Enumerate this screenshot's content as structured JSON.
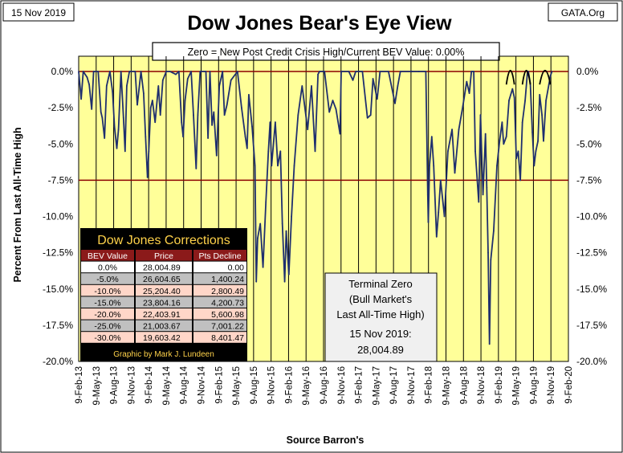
{
  "chart_data": {
    "type": "line",
    "title": "Dow Jones Bear's Eye View",
    "date_label": "15 Nov 2019",
    "source_label": "GATA.Org",
    "subtitle": "Zero = New Post Credit Crisis High/Current BEV Value:  0.00%",
    "xlabel": "Source Barron's",
    "ylabel": "Percent From Last All-Time High",
    "ylim": [
      -20,
      0
    ],
    "y_ticks": [
      0,
      -2.5,
      -5,
      -7.5,
      -10,
      -12.5,
      -15,
      -17.5,
      -20
    ],
    "y_tick_labels": [
      "0.0%",
      "-2.5%",
      "-5.0%",
      "-7.5%",
      "-10.0%",
      "-12.5%",
      "-15.0%",
      "-17.5%",
      "-20.0%"
    ],
    "x_range": [
      "2013-02-09",
      "2020-02-09"
    ],
    "x_tick_labels": [
      "9-Feb-13",
      "9-May-13",
      "9-Aug-13",
      "9-Nov-13",
      "9-Feb-14",
      "9-May-14",
      "9-Aug-14",
      "9-Nov-14",
      "9-Feb-15",
      "9-May-15",
      "9-Aug-15",
      "9-Nov-15",
      "9-Feb-16",
      "9-May-16",
      "9-Aug-16",
      "9-Nov-16",
      "9-Feb-17",
      "9-May-17",
      "9-Aug-17",
      "9-Nov-17",
      "9-Feb-18",
      "9-May-18",
      "9-Aug-18",
      "9-Nov-18",
      "9-Feb-19",
      "9-May-19",
      "9-Aug-19",
      "9-Nov-19",
      "9-Feb-20"
    ],
    "reference_lines": [
      0,
      -7.5
    ],
    "colors": {
      "plot_bg": "#ffff99",
      "line": "#1f2f6e",
      "reference": "#8b0000",
      "table_bg": "#000000",
      "table_title": "#ffd24a",
      "table_header": "#8b1a1a",
      "row_light": "#ffffff",
      "row_gray": "#c0c0c0",
      "row_pink": "#ffd6c8"
    },
    "series": [
      {
        "values": [
          [
            "2013-02-09",
            0.0
          ],
          [
            "2013-02-22",
            -1.9
          ],
          [
            "2013-03-05",
            0.0
          ],
          [
            "2013-03-25",
            -0.4
          ],
          [
            "2013-04-05",
            -0.9
          ],
          [
            "2013-04-18",
            -2.6
          ],
          [
            "2013-04-28",
            0.0
          ],
          [
            "2013-05-22",
            0.0
          ],
          [
            "2013-06-05",
            -2.8
          ],
          [
            "2013-06-12",
            -3.2
          ],
          [
            "2013-06-24",
            -4.6
          ],
          [
            "2013-07-05",
            -1.0
          ],
          [
            "2013-07-22",
            0.0
          ],
          [
            "2013-08-05",
            -1.4
          ],
          [
            "2013-08-15",
            -3.8
          ],
          [
            "2013-08-27",
            -5.3
          ],
          [
            "2013-09-05",
            -4.0
          ],
          [
            "2013-09-18",
            0.0
          ],
          [
            "2013-10-01",
            -3.2
          ],
          [
            "2013-10-09",
            -5.5
          ],
          [
            "2013-10-18",
            -1.0
          ],
          [
            "2013-11-01",
            0.0
          ],
          [
            "2013-12-01",
            0.0
          ],
          [
            "2013-12-12",
            -2.3
          ],
          [
            "2013-12-31",
            0.0
          ],
          [
            "2014-01-14",
            -1.5
          ],
          [
            "2014-01-24",
            -4.5
          ],
          [
            "2014-02-03",
            -7.3
          ],
          [
            "2014-02-10",
            -5.5
          ],
          [
            "2014-02-20",
            -2.5
          ],
          [
            "2014-03-01",
            -2.0
          ],
          [
            "2014-03-15",
            -3.5
          ],
          [
            "2014-04-01",
            -1.0
          ],
          [
            "2014-04-11",
            -3.0
          ],
          [
            "2014-04-24",
            -0.6
          ],
          [
            "2014-05-12",
            0.0
          ],
          [
            "2014-06-01",
            0.0
          ],
          [
            "2014-07-01",
            -0.2
          ],
          [
            "2014-07-17",
            0.0
          ],
          [
            "2014-07-31",
            -3.5
          ],
          [
            "2014-08-08",
            -4.5
          ],
          [
            "2014-08-18",
            -2.0
          ],
          [
            "2014-09-01",
            -0.5
          ],
          [
            "2014-09-19",
            0.0
          ],
          [
            "2014-10-01",
            -3.0
          ],
          [
            "2014-10-15",
            -6.7
          ],
          [
            "2014-10-24",
            -3.0
          ],
          [
            "2014-11-05",
            0.0
          ],
          [
            "2014-12-05",
            0.0
          ],
          [
            "2014-12-16",
            -4.6
          ],
          [
            "2014-12-26",
            0.0
          ],
          [
            "2015-01-06",
            -3.7
          ],
          [
            "2015-01-15",
            -2.8
          ],
          [
            "2015-01-30",
            -5.8
          ],
          [
            "2015-02-13",
            -1.0
          ],
          [
            "2015-03-02",
            0.0
          ],
          [
            "2015-03-12",
            -3.0
          ],
          [
            "2015-03-25",
            -2.3
          ],
          [
            "2015-04-15",
            -0.6
          ],
          [
            "2015-05-19",
            0.0
          ],
          [
            "2015-06-09",
            -2.5
          ],
          [
            "2015-06-29",
            -4.5
          ],
          [
            "2015-07-08",
            -5.3
          ],
          [
            "2015-07-17",
            -1.6
          ],
          [
            "2015-08-03",
            -3.8
          ],
          [
            "2015-08-18",
            -6.5
          ],
          [
            "2015-08-25",
            -14.5
          ],
          [
            "2015-09-01",
            -11.5
          ],
          [
            "2015-09-15",
            -10.5
          ],
          [
            "2015-09-29",
            -13.5
          ],
          [
            "2015-10-14",
            -9.0
          ],
          [
            "2015-10-27",
            -5.5
          ],
          [
            "2015-11-05",
            -3.5
          ],
          [
            "2015-11-13",
            -6.5
          ],
          [
            "2015-12-02",
            -3.5
          ],
          [
            "2015-12-15",
            -6.5
          ],
          [
            "2015-12-29",
            -5.5
          ],
          [
            "2016-01-08",
            -10.5
          ],
          [
            "2016-01-20",
            -14.5
          ],
          [
            "2016-01-28",
            -11.0
          ],
          [
            "2016-02-11",
            -14.0
          ],
          [
            "2016-02-25",
            -10.0
          ],
          [
            "2016-03-10",
            -6.5
          ],
          [
            "2016-03-30",
            -3.0
          ],
          [
            "2016-04-20",
            -1.0
          ],
          [
            "2016-05-19",
            -4.0
          ],
          [
            "2016-06-08",
            -1.0
          ],
          [
            "2016-06-27",
            -5.5
          ],
          [
            "2016-07-12",
            -0.2
          ],
          [
            "2016-07-20",
            0.0
          ],
          [
            "2016-08-15",
            0.0
          ],
          [
            "2016-09-09",
            -2.8
          ],
          [
            "2016-09-27",
            -2.0
          ],
          [
            "2016-10-14",
            -2.6
          ],
          [
            "2016-11-04",
            -4.3
          ],
          [
            "2016-11-10",
            0.0
          ],
          [
            "2016-12-20",
            0.0
          ],
          [
            "2017-01-10",
            -0.6
          ],
          [
            "2017-01-25",
            0.0
          ],
          [
            "2017-03-01",
            0.0
          ],
          [
            "2017-03-27",
            -3.2
          ],
          [
            "2017-04-13",
            -3.0
          ],
          [
            "2017-04-25",
            -0.5
          ],
          [
            "2017-05-17",
            -1.9
          ],
          [
            "2017-06-01",
            0.0
          ],
          [
            "2017-07-15",
            0.0
          ],
          [
            "2017-08-18",
            -2.2
          ],
          [
            "2017-09-01",
            -1.0
          ],
          [
            "2017-09-15",
            0.0
          ],
          [
            "2017-11-15",
            0.0
          ],
          [
            "2017-12-20",
            0.0
          ],
          [
            "2018-01-26",
            0.0
          ],
          [
            "2018-02-05",
            -8.5
          ],
          [
            "2018-02-08",
            -10.4
          ],
          [
            "2018-02-14",
            -6.5
          ],
          [
            "2018-02-26",
            -4.5
          ],
          [
            "2018-03-08",
            -6.5
          ],
          [
            "2018-03-23",
            -11.4
          ],
          [
            "2018-04-02",
            -9.7
          ],
          [
            "2018-04-13",
            -7.5
          ],
          [
            "2018-05-03",
            -10.0
          ],
          [
            "2018-05-21",
            -5.5
          ],
          [
            "2018-06-12",
            -4.0
          ],
          [
            "2018-06-26",
            -7.0
          ],
          [
            "2018-07-17",
            -4.0
          ],
          [
            "2018-08-07",
            -2.4
          ],
          [
            "2018-08-27",
            -0.7
          ],
          [
            "2018-09-10",
            -1.5
          ],
          [
            "2018-09-21",
            0.0
          ],
          [
            "2018-10-03",
            0.0
          ],
          [
            "2018-10-11",
            -5.5
          ],
          [
            "2018-10-29",
            -9.0
          ],
          [
            "2018-11-07",
            -3.0
          ],
          [
            "2018-11-20",
            -8.5
          ],
          [
            "2018-12-03",
            -4.3
          ],
          [
            "2018-12-10",
            -8.0
          ],
          [
            "2018-12-17",
            -12.5
          ],
          [
            "2018-12-24",
            -18.8
          ],
          [
            "2018-12-31",
            -13.0
          ],
          [
            "2019-01-15",
            -11.0
          ],
          [
            "2019-02-01",
            -6.5
          ],
          [
            "2019-02-15",
            -4.8
          ],
          [
            "2019-02-28",
            -3.5
          ],
          [
            "2019-03-08",
            -5.0
          ],
          [
            "2019-03-22",
            -4.5
          ],
          [
            "2019-04-05",
            -2.0
          ],
          [
            "2019-04-23",
            -1.2
          ],
          [
            "2019-05-03",
            -1.8
          ],
          [
            "2019-05-13",
            -6.0
          ],
          [
            "2019-05-23",
            -5.5
          ],
          [
            "2019-06-03",
            -7.5
          ],
          [
            "2019-06-14",
            -3.5
          ],
          [
            "2019-06-28",
            -2.0
          ],
          [
            "2019-07-10",
            -0.1
          ],
          [
            "2019-07-15",
            0.0
          ],
          [
            "2019-07-25",
            -0.8
          ],
          [
            "2019-08-05",
            -4.2
          ],
          [
            "2019-08-14",
            -6.5
          ],
          [
            "2019-08-23",
            -5.5
          ],
          [
            "2019-09-03",
            -4.8
          ],
          [
            "2019-09-12",
            -1.6
          ],
          [
            "2019-09-24",
            -3.0
          ],
          [
            "2019-10-02",
            -4.8
          ],
          [
            "2019-10-15",
            -2.0
          ],
          [
            "2019-10-30",
            -0.9
          ],
          [
            "2019-11-07",
            -0.3
          ],
          [
            "2019-11-15",
            0.0
          ]
        ]
      }
    ],
    "annotations": [
      {
        "start": "2019-03-22",
        "end": "2019-05-03",
        "type": "arc"
      },
      {
        "start": "2019-06-14",
        "end": "2019-07-25",
        "type": "arc"
      },
      {
        "start": "2019-09-12",
        "end": "2019-11-07",
        "type": "arc"
      }
    ]
  },
  "corrections_table": {
    "title": "Dow Jones Corrections",
    "headers": [
      "BEV Value",
      "Price",
      "Pts Decline"
    ],
    "rows": [
      [
        "0.0%",
        "28,004.89",
        "0.00"
      ],
      [
        "-5.0%",
        "26,604.65",
        "1,400.24"
      ],
      [
        "-10.0%",
        "25,204.40",
        "2,800.49"
      ],
      [
        "-15.0%",
        "23,804.16",
        "4,200.73"
      ],
      [
        "-20.0%",
        "22,403.91",
        "5,600.98"
      ],
      [
        "-25.0%",
        "21,003.67",
        "7,001.22"
      ],
      [
        "-30.0%",
        "19,603.42",
        "8,401.47"
      ]
    ],
    "credit": "Graphic by Mark J. Lundeen"
  },
  "terminal_box": {
    "line1": "Terminal Zero",
    "line2": "(Bull Market's",
    "line3": "Last All-Time High)",
    "line4": "15 Nov 2019:",
    "line5": "28,004.89"
  }
}
